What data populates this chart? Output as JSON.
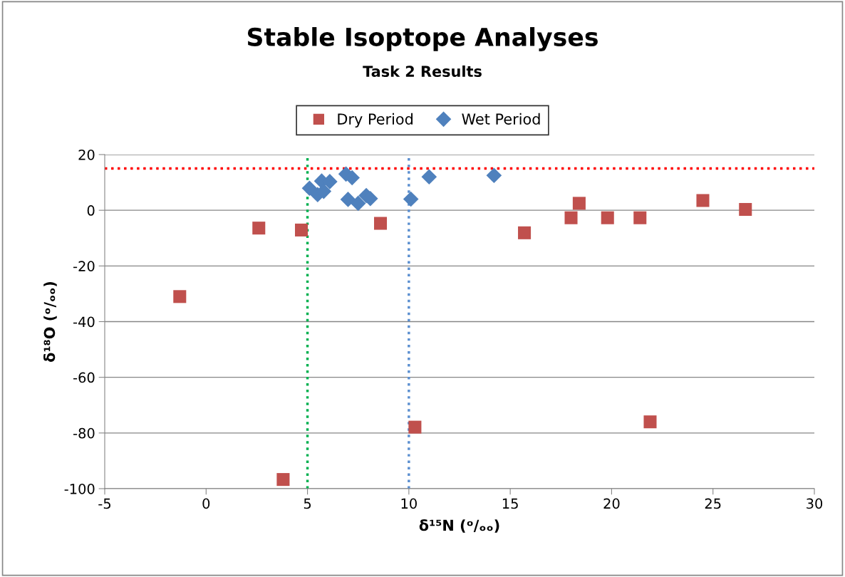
{
  "chart_data": {
    "type": "scatter",
    "title": "Stable Isoptope Analyses",
    "subtitle": "Task 2 Results",
    "xlabel": "δ¹⁵N (ᵒ/ₒₒ)",
    "ylabel": "δ¹⁸O (ᵒ/ₒₒ)",
    "series": [
      {
        "name": "Dry Period",
        "color": "#c0504d",
        "marker": "square",
        "x": [
          -1.3,
          2.6,
          3.8,
          4.7,
          8.6,
          10.3,
          15.7,
          18.0,
          18.4,
          19.8,
          21.4,
          21.9,
          24.5,
          26.6
        ],
        "values": [
          -31,
          -6.4,
          -96.7,
          -7.1,
          -4.7,
          -77.9,
          -8.1,
          -2.7,
          2.5,
          -2.7,
          -2.7,
          -76,
          3.5,
          0.3
        ]
      },
      {
        "name": "Wet Period",
        "color": "#4f81bd",
        "marker": "diamond",
        "x": [
          5.1,
          5.5,
          5.7,
          5.8,
          6.1,
          6.9,
          7.2,
          7.0,
          7.5,
          7.9,
          8.1,
          10.1,
          11.0,
          14.2
        ],
        "values": [
          7.9,
          5.6,
          10.5,
          6.8,
          10.3,
          13,
          11.7,
          3.9,
          2.5,
          5.3,
          4.2,
          4.0,
          12.0,
          12.5
        ]
      }
    ],
    "xlim": [
      -5,
      30
    ],
    "xticks": [
      -5,
      0,
      5,
      10,
      15,
      20,
      25,
      30
    ],
    "ylim": [
      -100,
      20
    ],
    "yticks": [
      -100,
      -80,
      -60,
      -40,
      -20,
      0,
      20
    ],
    "grid": "y",
    "legend": "top",
    "ref_lines": [
      {
        "axis": "x",
        "value": 5,
        "color": "#00b050",
        "line_style": "dotted"
      },
      {
        "axis": "x",
        "value": 10,
        "color": "#5b8fd0",
        "line_style": "dotted"
      },
      {
        "axis": "y",
        "value": 15,
        "color": "#ff0000",
        "line_style": "dotted"
      }
    ]
  }
}
